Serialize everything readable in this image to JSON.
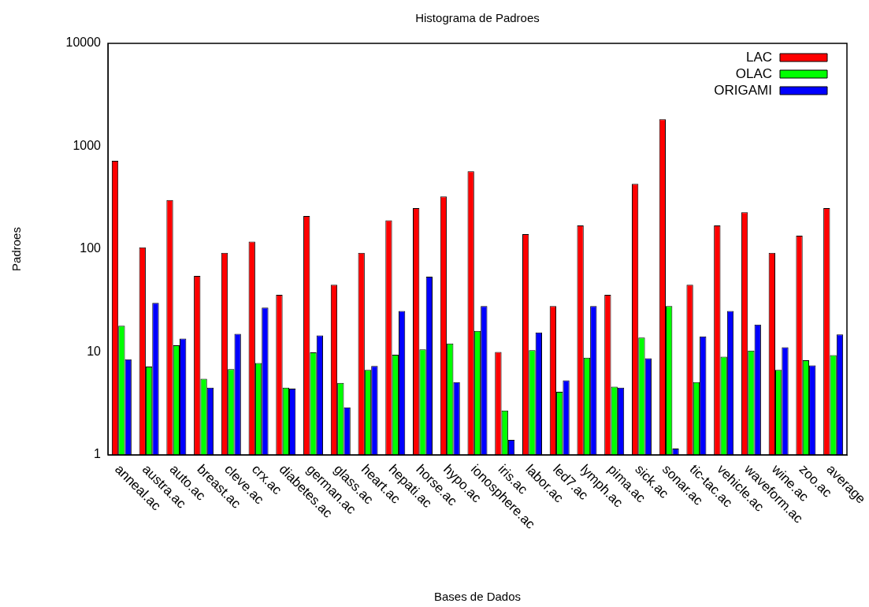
{
  "chart_data": {
    "type": "bar",
    "title": "Histograma de Padroes",
    "xlabel": "Bases de Dados",
    "ylabel": "Padroes",
    "categories": [
      "anneal.ac",
      "austra.ac",
      "auto.ac",
      "breast.ac",
      "cleve.ac",
      "crx.ac",
      "diabetes.ac",
      "german.ac",
      "glass.ac",
      "heart.ac",
      "hepati.ac",
      "horse.ac",
      "hypo.ac",
      "ionosphere.ac",
      "iris.ac",
      "labor.ac",
      "led7.ac",
      "lymph.ac",
      "pima.ac",
      "sick.ac",
      "sonar.ac",
      "tic-tac.ac",
      "vehicle.ac",
      "waveform.ac",
      "wine.ac",
      "zoo.ac",
      "average"
    ],
    "series": [
      {
        "name": "LAC",
        "color": "#ff0000",
        "values": [
          720,
          104,
          300,
          55,
          92,
          118,
          36,
          210,
          45,
          92,
          190,
          250,
          325,
          570,
          10,
          140,
          28,
          170,
          36,
          430,
          1830,
          45,
          170,
          228,
          92,
          135,
          250
        ]
      },
      {
        "name": "OLAC",
        "color": "#00ff00",
        "values": [
          18,
          7.2,
          11.6,
          5.5,
          6.8,
          7.8,
          4.5,
          9.9,
          5,
          6.7,
          9.4,
          10.6,
          12.1,
          16,
          2.7,
          10.4,
          4.1,
          8.8,
          4.6,
          13.8,
          28,
          5.1,
          9,
          10.3,
          6.7,
          8.3,
          9.3
        ]
      },
      {
        "name": "ORIGAMI",
        "color": "#0000ff",
        "values": [
          8.5,
          30,
          13.5,
          4.5,
          15,
          27,
          4.4,
          14.5,
          2.9,
          7.3,
          25,
          54,
          5.1,
          28,
          1.4,
          15.5,
          5.3,
          28,
          4.5,
          8.7,
          1.15,
          14.2,
          25,
          18.5,
          11.1,
          7.4,
          14.8
        ]
      }
    ],
    "ylim": [
      1,
      10000
    ],
    "yticks": [
      1,
      10,
      100,
      1000,
      10000
    ],
    "log": true,
    "legend": "top right"
  }
}
